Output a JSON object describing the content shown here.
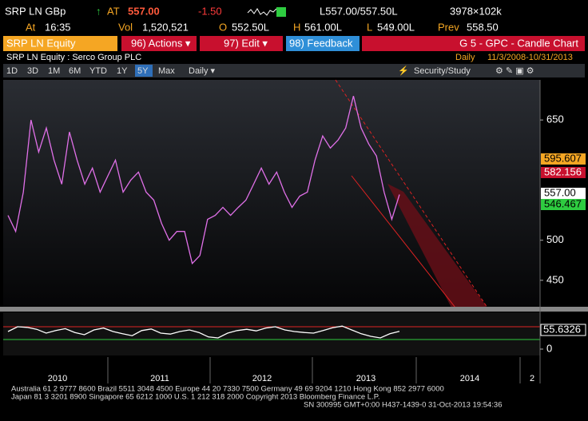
{
  "header": {
    "ticker": "SRP LN GBp",
    "arrow": "↑",
    "at_label": "AT",
    "last": "557.00",
    "change": "-1.50",
    "bid_ask": "L557.00/557.50L",
    "size": "3978×102k",
    "time_label": "At",
    "time": "16:35",
    "vol_label": "Vol",
    "vol": "1,520,521",
    "open_label": "O",
    "open": "552.50L",
    "high_label": "H",
    "high": "561.00L",
    "low_label": "L",
    "low": "549.00L",
    "prev_label": "Prev",
    "prev": "558.50"
  },
  "menu": {
    "security": "SRP LN Equity",
    "actions": "96) Actions ▾",
    "edit": "97) Edit ▾",
    "feedback": "98) Feedback",
    "function": "G 5 - GPC - Candle Chart"
  },
  "subheader": {
    "name": "SRP LN Equity : Serco Group PLC",
    "period_label": "Daily",
    "range": "11/3/2008-10/31/2013"
  },
  "toolbar": {
    "ranges": [
      "1D",
      "3D",
      "1M",
      "6M",
      "YTD",
      "1Y",
      "5Y",
      "Max"
    ],
    "frequency": "Daily ▾",
    "study": "Security/Study"
  },
  "chart_data": [
    {
      "type": "line",
      "color": "#e070e8",
      "values": [
        531,
        511,
        560,
        650,
        610,
        640,
        600,
        570,
        635,
        600,
        570,
        590,
        560,
        580,
        600,
        560,
        575,
        585,
        560,
        550,
        521,
        500,
        511,
        511,
        471,
        481,
        526,
        531,
        541,
        531,
        541,
        550,
        570,
        590,
        570,
        585,
        560,
        541,
        555,
        560,
        600,
        630,
        615,
        625,
        640,
        680,
        640,
        620,
        605,
        560,
        526,
        557
      ],
      "ylim": [
        416,
        700
      ],
      "yticks": [
        450,
        500,
        650
      ],
      "price_labels": [
        "595.607",
        "582.156",
        "557.00",
        "546.467"
      ],
      "x_labels": [
        "2010",
        "2011",
        "2012",
        "2013",
        "2014",
        "2"
      ]
    },
    {
      "type": "line",
      "color": "#ffffff",
      "values": [
        55,
        70,
        68,
        62,
        50,
        58,
        64,
        52,
        45,
        60,
        66,
        55,
        48,
        42,
        58,
        63,
        50,
        47,
        55,
        60,
        52,
        38,
        35,
        50,
        58,
        62,
        57,
        66,
        70,
        60,
        55,
        52,
        50,
        58,
        67,
        72,
        60,
        48,
        40,
        35,
        48,
        55.6326
      ],
      "ylim": [
        0,
        100
      ],
      "yticks": [
        0
      ],
      "last_label": "55.6326"
    }
  ],
  "footer": {
    "line1": "Australia 61 2 9777 8600 Brazil 5511 3048 4500 Europe 44 20 7330 7500 Germany 49 69 9204 1210 Hong Kong 852 2977 6000",
    "line2": "Japan 81 3 3201 8900        Singapore 65 6212 1000        U.S. 1 212 318 2000        Copyright 2013 Bloomberg Finance L.P.",
    "line3": "SN 300995 GMT+0:00 H437-1439-0 31-Oct-2013 19:54:36"
  }
}
